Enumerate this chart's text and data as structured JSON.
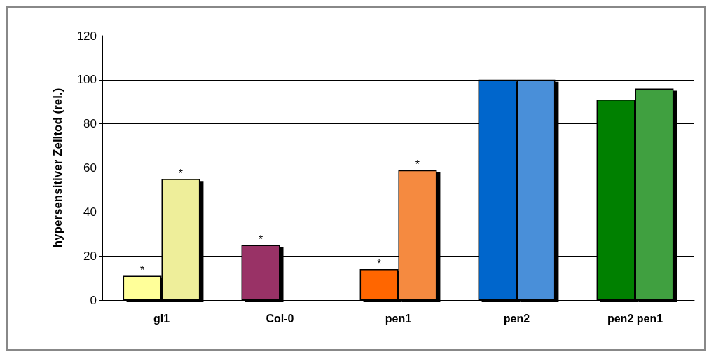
{
  "chart_data": {
    "type": "bar",
    "ylabel": "hypersensitiver Zelltod (rel.)",
    "categories": [
      "gl1",
      "Col-0",
      "pen1",
      "pen2",
      "pen2 pen1"
    ],
    "series": [
      {
        "colors": [
          "#ffff99",
          "#993366",
          "#ff6600",
          "#0066cc",
          "#008000"
        ],
        "values": [
          11,
          25,
          14,
          100,
          91
        ]
      },
      {
        "colors": [
          "#eeee9a",
          "#993366",
          "#f58a40",
          "#4a8fd9",
          "#3fa03f"
        ],
        "values": [
          55,
          null,
          59,
          100,
          96
        ]
      }
    ],
    "ylim": [
      0,
      120
    ],
    "yticks": [
      0,
      20,
      40,
      60,
      80,
      100,
      120
    ],
    "grid": "y",
    "annotations": [
      {
        "text": "*",
        "x": "gl1",
        "y": 11
      },
      {
        "text": "*",
        "x": "gl1",
        "y": 55
      },
      {
        "text": "*",
        "x": "Col-0",
        "y": 25
      },
      {
        "text": "*",
        "x": "pen1",
        "y": 14
      },
      {
        "text": "*",
        "x": "pen1",
        "y": 59
      }
    ]
  }
}
